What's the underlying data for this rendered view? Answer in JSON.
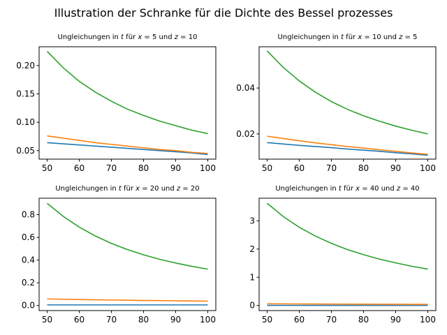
{
  "figure": {
    "suptitle": "Illustration der Schranke für die Dichte des Bessel prozesses"
  },
  "series_colors": [
    "#1f77b4",
    "#ff7f0e",
    "#2ca02c"
  ],
  "chart_data": [
    {
      "type": "line",
      "title_parts": [
        "Ungleichungen in ",
        "t",
        " für ",
        "x",
        " = 5 und ",
        "z",
        " = 10"
      ],
      "xlim": [
        47.5,
        102.5
      ],
      "ylim": [
        0.035,
        0.233
      ],
      "xticks": [
        50,
        60,
        70,
        80,
        90,
        100
      ],
      "yticks": [
        0.05,
        0.1,
        0.15,
        0.2
      ],
      "ytick_labels": [
        "0.05",
        "0.10",
        "0.15",
        "0.20"
      ],
      "x": [
        50,
        55,
        60,
        65,
        70,
        75,
        80,
        85,
        90,
        95,
        100
      ],
      "series": [
        {
          "values": [
            0.064,
            0.062,
            0.06,
            0.058,
            0.056,
            0.054,
            0.052,
            0.05,
            0.048,
            0.046,
            0.043
          ]
        },
        {
          "values": [
            0.076,
            0.072,
            0.068,
            0.064,
            0.061,
            0.058,
            0.055,
            0.052,
            0.05,
            0.047,
            0.045
          ]
        },
        {
          "values": [
            0.225,
            0.196,
            0.172,
            0.153,
            0.137,
            0.123,
            0.112,
            0.102,
            0.094,
            0.086,
            0.08
          ]
        }
      ]
    },
    {
      "type": "line",
      "title_parts": [
        "Ungleichungen in ",
        "t",
        " für ",
        "x",
        " = 10 und ",
        "z",
        " = 5"
      ],
      "xlim": [
        47.5,
        102.5
      ],
      "ylim": [
        0.009,
        0.058
      ],
      "xticks": [
        50,
        60,
        70,
        80,
        90,
        100
      ],
      "yticks": [
        0.02,
        0.04
      ],
      "ytick_labels": [
        "0.02",
        "0.04"
      ],
      "x": [
        50,
        55,
        60,
        65,
        70,
        75,
        80,
        85,
        90,
        95,
        100
      ],
      "series": [
        {
          "values": [
            0.0162,
            0.0156,
            0.015,
            0.0145,
            0.014,
            0.0134,
            0.0129,
            0.0124,
            0.0118,
            0.0113,
            0.0107
          ]
        },
        {
          "values": [
            0.019,
            0.018,
            0.017,
            0.0161,
            0.0153,
            0.0145,
            0.0138,
            0.0131,
            0.0124,
            0.0117,
            0.0111
          ]
        },
        {
          "values": [
            0.0562,
            0.049,
            0.0431,
            0.0382,
            0.0341,
            0.0307,
            0.0279,
            0.0255,
            0.0234,
            0.0216,
            0.02
          ]
        }
      ]
    },
    {
      "type": "line",
      "title_parts": [
        "Ungleichungen in ",
        "t",
        " für ",
        "x",
        " = 20 und ",
        "z",
        " = 20"
      ],
      "xlim": [
        47.5,
        102.5
      ],
      "ylim": [
        -0.045,
        0.945
      ],
      "xticks": [
        50,
        60,
        70,
        80,
        90,
        100
      ],
      "yticks": [
        0.0,
        0.2,
        0.4,
        0.6,
        0.8
      ],
      "ytick_labels": [
        "0.0",
        "0.2",
        "0.4",
        "0.6",
        "0.8"
      ],
      "x": [
        50,
        55,
        60,
        65,
        70,
        75,
        80,
        85,
        90,
        95,
        100
      ],
      "series": [
        {
          "values": [
            0.005,
            0.005,
            0.005,
            0.005,
            0.005,
            0.005,
            0.005,
            0.005,
            0.005,
            0.005,
            0.005
          ]
        },
        {
          "values": [
            0.058,
            0.055,
            0.052,
            0.05,
            0.048,
            0.046,
            0.044,
            0.043,
            0.041,
            0.04,
            0.038
          ]
        },
        {
          "values": [
            0.9,
            0.785,
            0.69,
            0.612,
            0.547,
            0.492,
            0.446,
            0.407,
            0.374,
            0.345,
            0.32
          ]
        }
      ]
    },
    {
      "type": "line",
      "title_parts": [
        "Ungleichungen in ",
        "t",
        " für ",
        "x",
        " = 40 und ",
        "z",
        " = 40"
      ],
      "xlim": [
        47.5,
        102.5
      ],
      "ylim": [
        -0.18,
        3.8
      ],
      "xticks": [
        50,
        60,
        70,
        80,
        90,
        100
      ],
      "yticks": [
        0,
        1,
        2,
        3
      ],
      "ytick_labels": [
        "0",
        "1",
        "2",
        "3"
      ],
      "x": [
        50,
        55,
        60,
        65,
        70,
        75,
        80,
        85,
        90,
        95,
        100
      ],
      "series": [
        {
          "values": [
            0.005,
            0.005,
            0.005,
            0.005,
            0.005,
            0.005,
            0.005,
            0.005,
            0.005,
            0.005,
            0.005
          ]
        },
        {
          "values": [
            0.06,
            0.058,
            0.055,
            0.053,
            0.051,
            0.049,
            0.047,
            0.045,
            0.043,
            0.041,
            0.04
          ]
        },
        {
          "values": [
            3.62,
            3.15,
            2.77,
            2.46,
            2.2,
            1.98,
            1.8,
            1.64,
            1.51,
            1.39,
            1.29
          ]
        }
      ]
    }
  ]
}
